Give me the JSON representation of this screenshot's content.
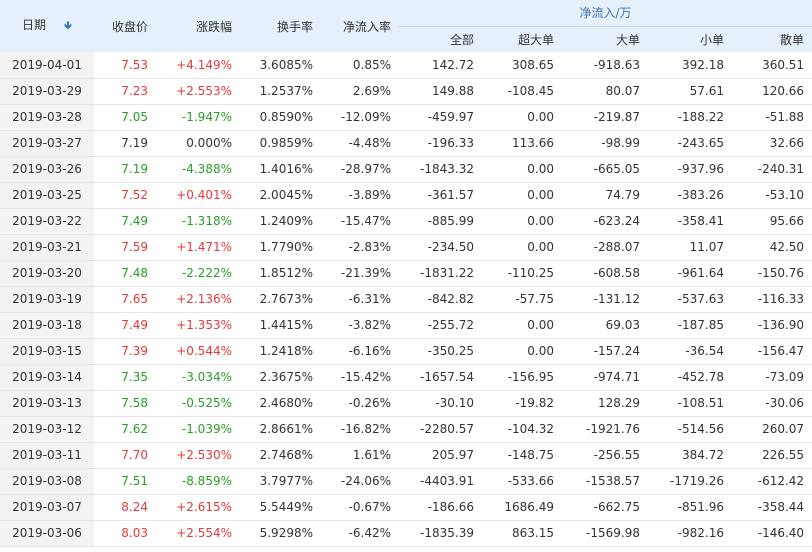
{
  "header": {
    "date": "日期",
    "sort_icon": "sort-down-arrow-icon",
    "close": "收盘价",
    "change": "涨跌幅",
    "turnover": "换手率",
    "net_inflow_rate": "净流入率",
    "net_inflow_group": "净流入/万",
    "all": "全部",
    "super_large": "超大单",
    "large": "大单",
    "small": "小单",
    "retail": "散单"
  },
  "colors": {
    "up": "#e4393c",
    "down": "#2a9c2a",
    "flat": "#333333",
    "header_bg": "#e6f0fb",
    "date_bg": "#f3f3f3"
  },
  "rows": [
    {
      "date": "2019-04-01",
      "close": "7.53",
      "change": "+4.149%",
      "turnover": "3.6085%",
      "rate": "0.85%",
      "all": "142.72",
      "super": "308.65",
      "large": "-918.63",
      "small": "392.18",
      "retail": "360.51",
      "dir": "up"
    },
    {
      "date": "2019-03-29",
      "close": "7.23",
      "change": "+2.553%",
      "turnover": "1.2537%",
      "rate": "2.69%",
      "all": "149.88",
      "super": "-108.45",
      "large": "80.07",
      "small": "57.61",
      "retail": "120.66",
      "dir": "up"
    },
    {
      "date": "2019-03-28",
      "close": "7.05",
      "change": "-1.947%",
      "turnover": "0.8590%",
      "rate": "-12.09%",
      "all": "-459.97",
      "super": "0.00",
      "large": "-219.87",
      "small": "-188.22",
      "retail": "-51.88",
      "dir": "down"
    },
    {
      "date": "2019-03-27",
      "close": "7.19",
      "change": "0.000%",
      "turnover": "0.9859%",
      "rate": "-4.48%",
      "all": "-196.33",
      "super": "113.66",
      "large": "-98.99",
      "small": "-243.65",
      "retail": "32.66",
      "dir": "flat"
    },
    {
      "date": "2019-03-26",
      "close": "7.19",
      "change": "-4.388%",
      "turnover": "1.4016%",
      "rate": "-28.97%",
      "all": "-1843.32",
      "super": "0.00",
      "large": "-665.05",
      "small": "-937.96",
      "retail": "-240.31",
      "dir": "down"
    },
    {
      "date": "2019-03-25",
      "close": "7.52",
      "change": "+0.401%",
      "turnover": "2.0045%",
      "rate": "-3.89%",
      "all": "-361.57",
      "super": "0.00",
      "large": "74.79",
      "small": "-383.26",
      "retail": "-53.10",
      "dir": "up"
    },
    {
      "date": "2019-03-22",
      "close": "7.49",
      "change": "-1.318%",
      "turnover": "1.2409%",
      "rate": "-15.47%",
      "all": "-885.99",
      "super": "0.00",
      "large": "-623.24",
      "small": "-358.41",
      "retail": "95.66",
      "dir": "down"
    },
    {
      "date": "2019-03-21",
      "close": "7.59",
      "change": "+1.471%",
      "turnover": "1.7790%",
      "rate": "-2.83%",
      "all": "-234.50",
      "super": "0.00",
      "large": "-288.07",
      "small": "11.07",
      "retail": "42.50",
      "dir": "up"
    },
    {
      "date": "2019-03-20",
      "close": "7.48",
      "change": "-2.222%",
      "turnover": "1.8512%",
      "rate": "-21.39%",
      "all": "-1831.22",
      "super": "-110.25",
      "large": "-608.58",
      "small": "-961.64",
      "retail": "-150.76",
      "dir": "down"
    },
    {
      "date": "2019-03-19",
      "close": "7.65",
      "change": "+2.136%",
      "turnover": "2.7673%",
      "rate": "-6.31%",
      "all": "-842.82",
      "super": "-57.75",
      "large": "-131.12",
      "small": "-537.63",
      "retail": "-116.33",
      "dir": "up"
    },
    {
      "date": "2019-03-18",
      "close": "7.49",
      "change": "+1.353%",
      "turnover": "1.4415%",
      "rate": "-3.82%",
      "all": "-255.72",
      "super": "0.00",
      "large": "69.03",
      "small": "-187.85",
      "retail": "-136.90",
      "dir": "up"
    },
    {
      "date": "2019-03-15",
      "close": "7.39",
      "change": "+0.544%",
      "turnover": "1.2418%",
      "rate": "-6.16%",
      "all": "-350.25",
      "super": "0.00",
      "large": "-157.24",
      "small": "-36.54",
      "retail": "-156.47",
      "dir": "up"
    },
    {
      "date": "2019-03-14",
      "close": "7.35",
      "change": "-3.034%",
      "turnover": "2.3675%",
      "rate": "-15.42%",
      "all": "-1657.54",
      "super": "-156.95",
      "large": "-974.71",
      "small": "-452.78",
      "retail": "-73.09",
      "dir": "down"
    },
    {
      "date": "2019-03-13",
      "close": "7.58",
      "change": "-0.525%",
      "turnover": "2.4680%",
      "rate": "-0.26%",
      "all": "-30.10",
      "super": "-19.82",
      "large": "128.29",
      "small": "-108.51",
      "retail": "-30.06",
      "dir": "down"
    },
    {
      "date": "2019-03-12",
      "close": "7.62",
      "change": "-1.039%",
      "turnover": "2.8661%",
      "rate": "-16.82%",
      "all": "-2280.57",
      "super": "-104.32",
      "large": "-1921.76",
      "small": "-514.56",
      "retail": "260.07",
      "dir": "down"
    },
    {
      "date": "2019-03-11",
      "close": "7.70",
      "change": "+2.530%",
      "turnover": "2.7468%",
      "rate": "1.61%",
      "all": "205.97",
      "super": "-148.75",
      "large": "-256.55",
      "small": "384.72",
      "retail": "226.55",
      "dir": "up"
    },
    {
      "date": "2019-03-08",
      "close": "7.51",
      "change": "-8.859%",
      "turnover": "3.7977%",
      "rate": "-24.06%",
      "all": "-4403.91",
      "super": "-533.66",
      "large": "-1538.57",
      "small": "-1719.26",
      "retail": "-612.42",
      "dir": "down"
    },
    {
      "date": "2019-03-07",
      "close": "8.24",
      "change": "+2.615%",
      "turnover": "5.5449%",
      "rate": "-0.67%",
      "all": "-186.66",
      "super": "1686.49",
      "large": "-662.75",
      "small": "-851.96",
      "retail": "-358.44",
      "dir": "up"
    },
    {
      "date": "2019-03-06",
      "close": "8.03",
      "change": "+2.554%",
      "turnover": "5.9298%",
      "rate": "-6.42%",
      "all": "-1835.39",
      "super": "863.15",
      "large": "-1569.98",
      "small": "-982.16",
      "retail": "-146.40",
      "dir": "up"
    }
  ]
}
